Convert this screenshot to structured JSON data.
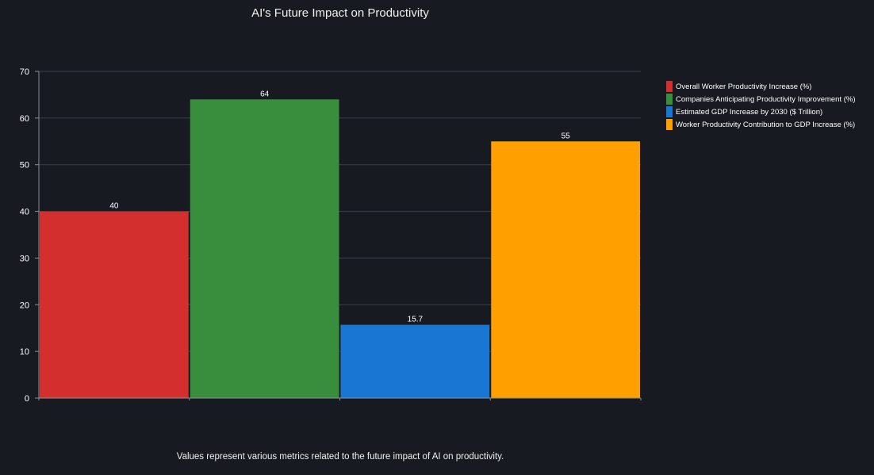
{
  "chart_data": {
    "type": "bar",
    "title": "AI's Future Impact on Productivity",
    "categories": [
      "Overall Worker Productivity Increase (%)",
      "Companies Anticipating Productivity Improvement (%)",
      "Estimated GDP Increase by 2030 ($ Trillion)",
      "Worker Productivity Contribution to GDP Increase (%)"
    ],
    "values": [
      40,
      64,
      15.7,
      55
    ],
    "data_labels": [
      "40",
      "64",
      "15.7",
      "55"
    ],
    "colors": [
      "#d32f2f",
      "#388e3c",
      "#1976d2",
      "#ffa000"
    ],
    "ylim": [
      0,
      70
    ],
    "yticks": [
      0,
      10,
      20,
      30,
      40,
      50,
      60,
      70
    ],
    "xlabel": "",
    "ylabel": "",
    "grid": true,
    "legend_position": "right"
  },
  "footnote": "Values represent various metrics related to the future impact of AI on productivity."
}
